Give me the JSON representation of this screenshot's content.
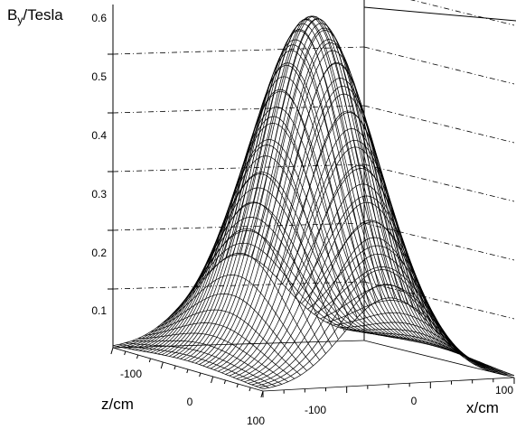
{
  "chart_data": {
    "type": "surface",
    "zlabel": "B",
    "zlabel_sub": "y",
    "zlabel_unit": "/Tesla",
    "xlabel": "x/cm",
    "ylabel": "z/cm",
    "zticks": [
      "0.1",
      "0.2",
      "0.3",
      "0.4",
      "0.5",
      "0.6"
    ],
    "xticks": [
      "-100",
      "0",
      "100"
    ],
    "yticks": [
      "-100",
      "0",
      "100"
    ],
    "zlim": [
      0,
      0.6
    ],
    "xlim": [
      -150,
      150
    ],
    "ylim": [
      -150,
      150
    ],
    "peak_value": 0.59,
    "sigma_x": 55,
    "sigma_z": 90,
    "grid": true
  }
}
